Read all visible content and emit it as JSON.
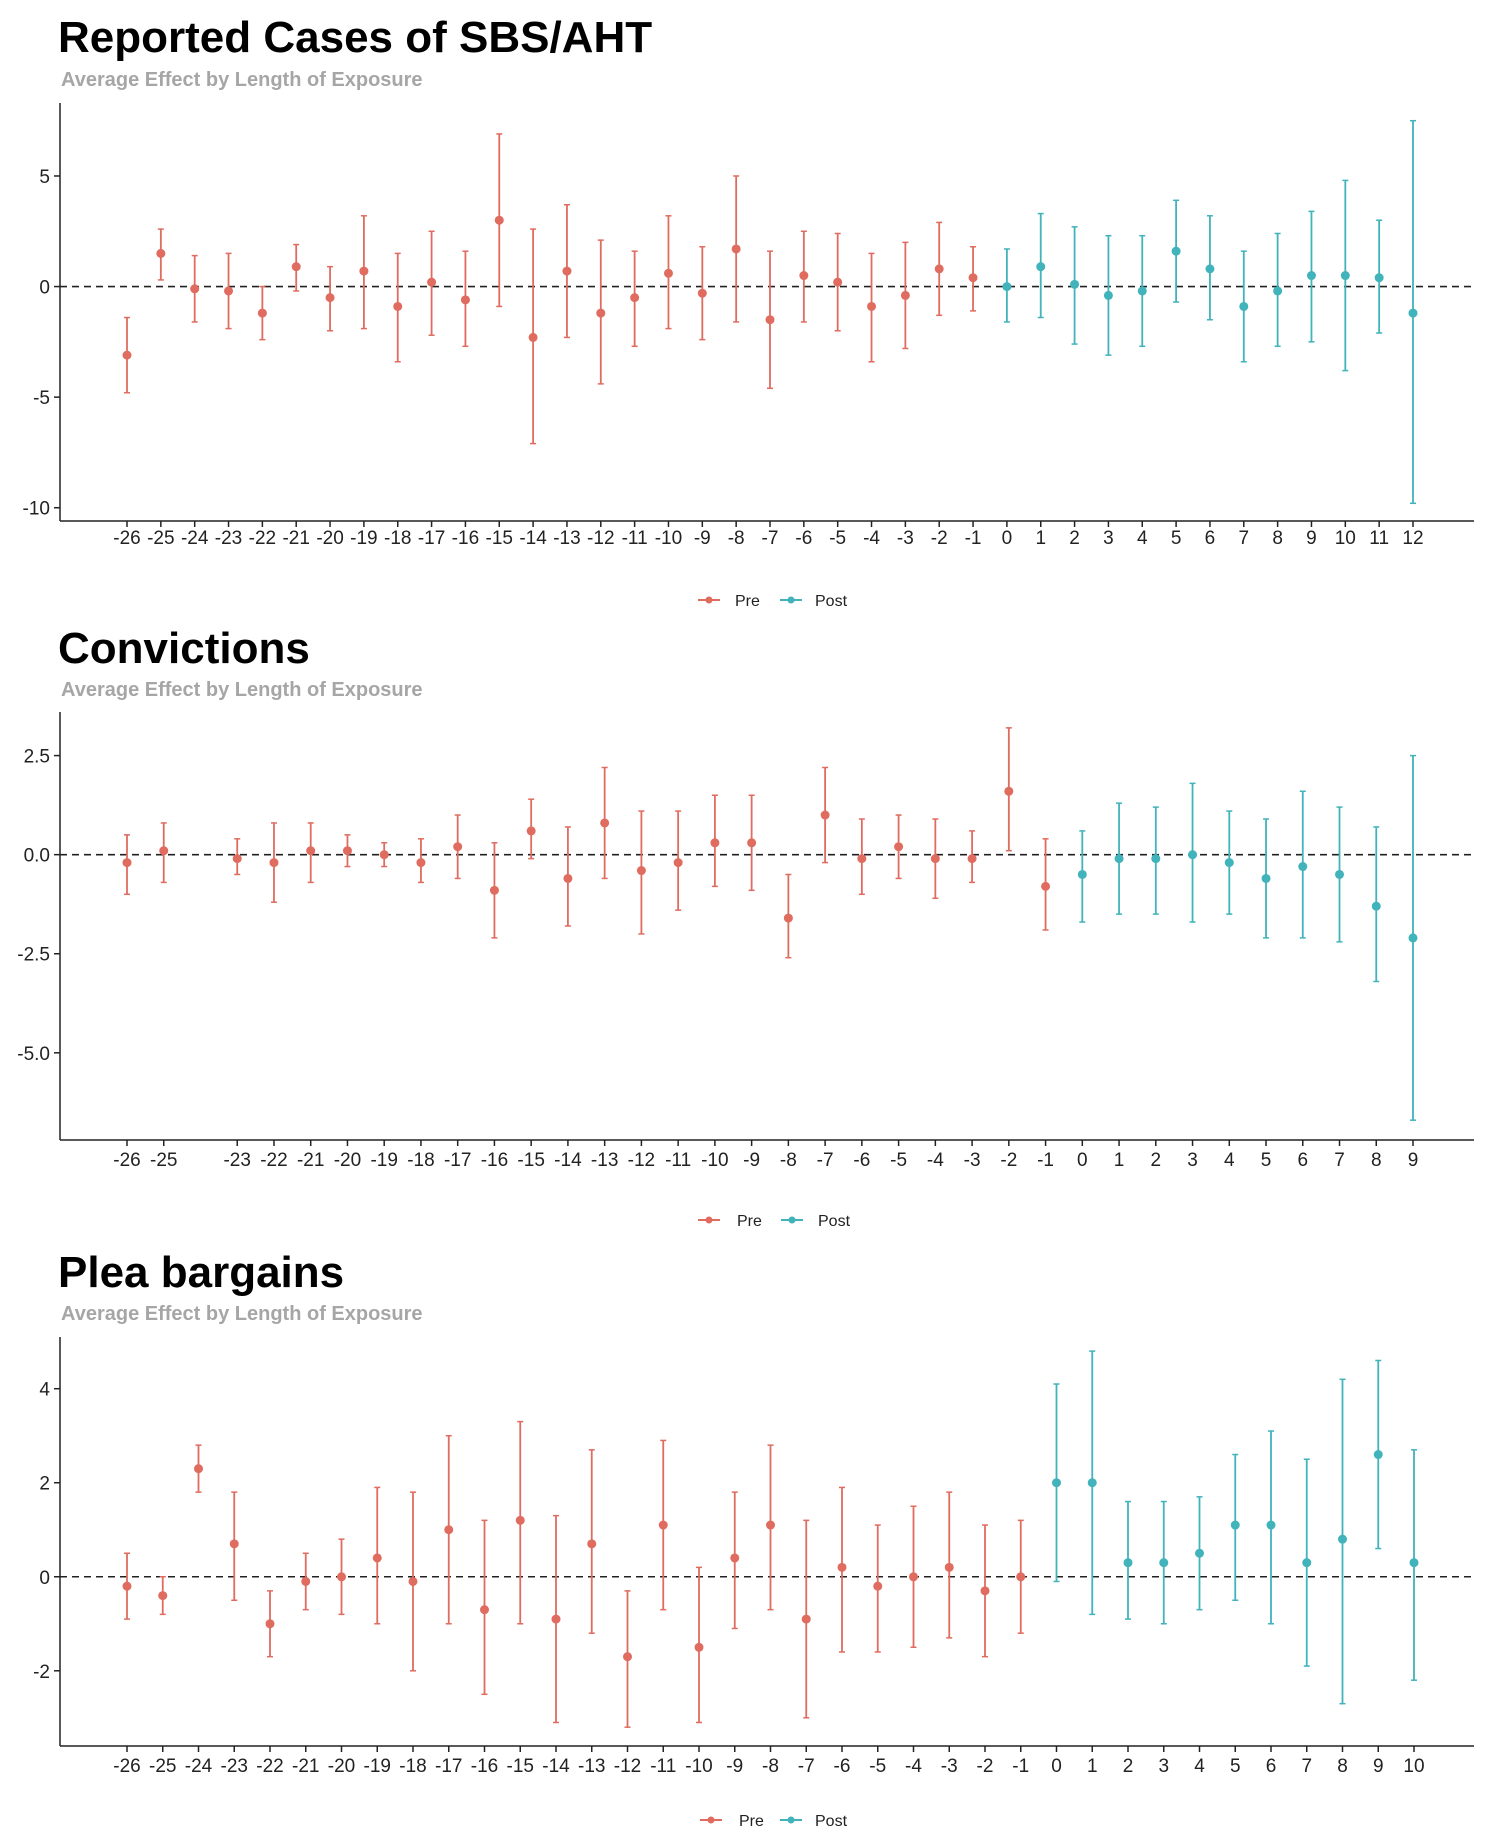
{
  "colors": {
    "pre": "#e06b5f",
    "post": "#40b3bb",
    "axis": "#222222",
    "zero_line": "#222222"
  },
  "chart_data": [
    {
      "type": "scatter",
      "title": "Reported Cases of SBS/AHT",
      "subtitle": "Average Effect by Length of Exposure",
      "xlabel": "",
      "ylabel": "",
      "ylim": [
        -10.6,
        8.3
      ],
      "y_ticks": [
        5,
        0,
        -5,
        -10
      ],
      "y_tick_labels": [
        "5",
        "0",
        "-5",
        "-10"
      ],
      "legend": {
        "position": "bottom",
        "entries": [
          "Pre",
          "Post"
        ]
      },
      "series": [
        {
          "name": "Pre",
          "points": [
            {
              "x": -26,
              "y": -3.1,
              "lo": -4.8,
              "hi": -1.4
            },
            {
              "x": -25,
              "y": 1.5,
              "lo": 0.3,
              "hi": 2.6
            },
            {
              "x": -24,
              "y": -0.1,
              "lo": -1.6,
              "hi": 1.4
            },
            {
              "x": -23,
              "y": -0.2,
              "lo": -1.9,
              "hi": 1.5
            },
            {
              "x": -22,
              "y": -1.2,
              "lo": -2.4,
              "hi": 0.0
            },
            {
              "x": -21,
              "y": 0.9,
              "lo": -0.2,
              "hi": 1.9
            },
            {
              "x": -20,
              "y": -0.5,
              "lo": -2.0,
              "hi": 0.9
            },
            {
              "x": -19,
              "y": 0.7,
              "lo": -1.9,
              "hi": 3.2
            },
            {
              "x": -18,
              "y": -0.9,
              "lo": -3.4,
              "hi": 1.5
            },
            {
              "x": -17,
              "y": 0.2,
              "lo": -2.2,
              "hi": 2.5
            },
            {
              "x": -16,
              "y": -0.6,
              "lo": -2.7,
              "hi": 1.6
            },
            {
              "x": -15,
              "y": 3.0,
              "lo": -0.9,
              "hi": 6.9
            },
            {
              "x": -14,
              "y": -2.3,
              "lo": -7.1,
              "hi": 2.6
            },
            {
              "x": -13,
              "y": 0.7,
              "lo": -2.3,
              "hi": 3.7
            },
            {
              "x": -12,
              "y": -1.2,
              "lo": -4.4,
              "hi": 2.1
            },
            {
              "x": -11,
              "y": -0.5,
              "lo": -2.7,
              "hi": 1.6
            },
            {
              "x": -10,
              "y": 0.6,
              "lo": -1.9,
              "hi": 3.2
            },
            {
              "x": -9,
              "y": -0.3,
              "lo": -2.4,
              "hi": 1.8
            },
            {
              "x": -8,
              "y": 1.7,
              "lo": -1.6,
              "hi": 5.0
            },
            {
              "x": -7,
              "y": -1.5,
              "lo": -4.6,
              "hi": 1.6
            },
            {
              "x": -6,
              "y": 0.5,
              "lo": -1.6,
              "hi": 2.5
            },
            {
              "x": -5,
              "y": 0.2,
              "lo": -2.0,
              "hi": 2.4
            },
            {
              "x": -4,
              "y": -0.9,
              "lo": -3.4,
              "hi": 1.5
            },
            {
              "x": -3,
              "y": -0.4,
              "lo": -2.8,
              "hi": 2.0
            },
            {
              "x": -2,
              "y": 0.8,
              "lo": -1.3,
              "hi": 2.9
            },
            {
              "x": -1,
              "y": 0.4,
              "lo": -1.1,
              "hi": 1.8
            }
          ]
        },
        {
          "name": "Post",
          "points": [
            {
              "x": 0,
              "y": 0.0,
              "lo": -1.6,
              "hi": 1.7
            },
            {
              "x": 1,
              "y": 0.9,
              "lo": -1.4,
              "hi": 3.3
            },
            {
              "x": 2,
              "y": 0.1,
              "lo": -2.6,
              "hi": 2.7
            },
            {
              "x": 3,
              "y": -0.4,
              "lo": -3.1,
              "hi": 2.3
            },
            {
              "x": 4,
              "y": -0.2,
              "lo": -2.7,
              "hi": 2.3
            },
            {
              "x": 5,
              "y": 1.6,
              "lo": -0.7,
              "hi": 3.9
            },
            {
              "x": 6,
              "y": 0.8,
              "lo": -1.5,
              "hi": 3.2
            },
            {
              "x": 7,
              "y": -0.9,
              "lo": -3.4,
              "hi": 1.6
            },
            {
              "x": 8,
              "y": -0.2,
              "lo": -2.7,
              "hi": 2.4
            },
            {
              "x": 9,
              "y": 0.5,
              "lo": -2.5,
              "hi": 3.4
            },
            {
              "x": 10,
              "y": 0.5,
              "lo": -3.8,
              "hi": 4.8
            },
            {
              "x": 11,
              "y": 0.4,
              "lo": -2.1,
              "hi": 3.0
            },
            {
              "x": 12,
              "y": -1.2,
              "lo": -9.8,
              "hi": 7.5
            }
          ]
        }
      ]
    },
    {
      "type": "scatter",
      "title": "Convictions",
      "subtitle": "Average Effect by Length of Exposure",
      "xlabel": "",
      "ylabel": "",
      "ylim": [
        -7.2,
        3.6
      ],
      "y_ticks": [
        2.5,
        0.0,
        -2.5,
        -5.0
      ],
      "y_tick_labels": [
        "2.5",
        "0.0",
        "-2.5",
        "-5.0"
      ],
      "legend": {
        "position": "bottom",
        "entries": [
          "Pre",
          "Post"
        ]
      },
      "series": [
        {
          "name": "Pre",
          "points": [
            {
              "x": -26,
              "y": -0.2,
              "lo": -1.0,
              "hi": 0.5
            },
            {
              "x": -25,
              "y": 0.1,
              "lo": -0.7,
              "hi": 0.8
            },
            {
              "x": -23,
              "y": -0.1,
              "lo": -0.5,
              "hi": 0.4
            },
            {
              "x": -22,
              "y": -0.2,
              "lo": -1.2,
              "hi": 0.8
            },
            {
              "x": -21,
              "y": 0.1,
              "lo": -0.7,
              "hi": 0.8
            },
            {
              "x": -20,
              "y": 0.1,
              "lo": -0.3,
              "hi": 0.5
            },
            {
              "x": -19,
              "y": 0.0,
              "lo": -0.3,
              "hi": 0.3
            },
            {
              "x": -18,
              "y": -0.2,
              "lo": -0.7,
              "hi": 0.4
            },
            {
              "x": -17,
              "y": 0.2,
              "lo": -0.6,
              "hi": 1.0
            },
            {
              "x": -16,
              "y": -0.9,
              "lo": -2.1,
              "hi": 0.3
            },
            {
              "x": -15,
              "y": 0.6,
              "lo": -0.1,
              "hi": 1.4
            },
            {
              "x": -14,
              "y": -0.6,
              "lo": -1.8,
              "hi": 0.7
            },
            {
              "x": -13,
              "y": 0.8,
              "lo": -0.6,
              "hi": 2.2
            },
            {
              "x": -12,
              "y": -0.4,
              "lo": -2.0,
              "hi": 1.1
            },
            {
              "x": -11,
              "y": -0.2,
              "lo": -1.4,
              "hi": 1.1
            },
            {
              "x": -10,
              "y": 0.3,
              "lo": -0.8,
              "hi": 1.5
            },
            {
              "x": -9,
              "y": 0.3,
              "lo": -0.9,
              "hi": 1.5
            },
            {
              "x": -8,
              "y": -1.6,
              "lo": -2.6,
              "hi": -0.5
            },
            {
              "x": -7,
              "y": 1.0,
              "lo": -0.2,
              "hi": 2.2
            },
            {
              "x": -6,
              "y": -0.1,
              "lo": -1.0,
              "hi": 0.9
            },
            {
              "x": -5,
              "y": 0.2,
              "lo": -0.6,
              "hi": 1.0
            },
            {
              "x": -4,
              "y": -0.1,
              "lo": -1.1,
              "hi": 0.9
            },
            {
              "x": -3,
              "y": -0.1,
              "lo": -0.7,
              "hi": 0.6
            },
            {
              "x": -2,
              "y": 1.6,
              "lo": 0.1,
              "hi": 3.2
            },
            {
              "x": -1,
              "y": -0.8,
              "lo": -1.9,
              "hi": 0.4
            }
          ]
        },
        {
          "name": "Post",
          "points": [
            {
              "x": 0,
              "y": -0.5,
              "lo": -1.7,
              "hi": 0.6
            },
            {
              "x": 1,
              "y": -0.1,
              "lo": -1.5,
              "hi": 1.3
            },
            {
              "x": 2,
              "y": -0.1,
              "lo": -1.5,
              "hi": 1.2
            },
            {
              "x": 3,
              "y": 0.0,
              "lo": -1.7,
              "hi": 1.8
            },
            {
              "x": 4,
              "y": -0.2,
              "lo": -1.5,
              "hi": 1.1
            },
            {
              "x": 5,
              "y": -0.6,
              "lo": -2.1,
              "hi": 0.9
            },
            {
              "x": 6,
              "y": -0.3,
              "lo": -2.1,
              "hi": 1.6
            },
            {
              "x": 7,
              "y": -0.5,
              "lo": -2.2,
              "hi": 1.2
            },
            {
              "x": 8,
              "y": -1.3,
              "lo": -3.2,
              "hi": 0.7
            },
            {
              "x": 9,
              "y": -2.1,
              "lo": -6.7,
              "hi": 2.5
            }
          ]
        }
      ]
    },
    {
      "type": "scatter",
      "title": "Plea bargains",
      "subtitle": "Average Effect by Length of Exposure",
      "xlabel": "",
      "ylabel": "",
      "ylim": [
        -3.6,
        5.1
      ],
      "y_ticks": [
        4,
        2,
        0,
        -2
      ],
      "y_tick_labels": [
        "4",
        "2",
        "0",
        "-2"
      ],
      "legend": {
        "position": "bottom",
        "entries": [
          "Pre",
          "Post"
        ]
      },
      "series": [
        {
          "name": "Pre",
          "points": [
            {
              "x": -26,
              "y": -0.2,
              "lo": -0.9,
              "hi": 0.5
            },
            {
              "x": -25,
              "y": -0.4,
              "lo": -0.8,
              "hi": 0.0
            },
            {
              "x": -24,
              "y": 2.3,
              "lo": 1.8,
              "hi": 2.8
            },
            {
              "x": -23,
              "y": 0.7,
              "lo": -0.5,
              "hi": 1.8
            },
            {
              "x": -22,
              "y": -1.0,
              "lo": -1.7,
              "hi": -0.3
            },
            {
              "x": -21,
              "y": -0.1,
              "lo": -0.7,
              "hi": 0.5
            },
            {
              "x": -20,
              "y": 0.0,
              "lo": -0.8,
              "hi": 0.8
            },
            {
              "x": -19,
              "y": 0.4,
              "lo": -1.0,
              "hi": 1.9
            },
            {
              "x": -18,
              "y": -0.1,
              "lo": -2.0,
              "hi": 1.8
            },
            {
              "x": -17,
              "y": 1.0,
              "lo": -1.0,
              "hi": 3.0
            },
            {
              "x": -16,
              "y": -0.7,
              "lo": -2.5,
              "hi": 1.2
            },
            {
              "x": -15,
              "y": 1.2,
              "lo": -1.0,
              "hi": 3.3
            },
            {
              "x": -14,
              "y": -0.9,
              "lo": -3.1,
              "hi": 1.3
            },
            {
              "x": -13,
              "y": 0.7,
              "lo": -1.2,
              "hi": 2.7
            },
            {
              "x": -12,
              "y": -1.7,
              "lo": -3.2,
              "hi": -0.3
            },
            {
              "x": -11,
              "y": 1.1,
              "lo": -0.7,
              "hi": 2.9
            },
            {
              "x": -10,
              "y": -1.5,
              "lo": -3.1,
              "hi": 0.2
            },
            {
              "x": -9,
              "y": 0.4,
              "lo": -1.1,
              "hi": 1.8
            },
            {
              "x": -8,
              "y": 1.1,
              "lo": -0.7,
              "hi": 2.8
            },
            {
              "x": -7,
              "y": -0.9,
              "lo": -3.0,
              "hi": 1.2
            },
            {
              "x": -6,
              "y": 0.2,
              "lo": -1.6,
              "hi": 1.9
            },
            {
              "x": -5,
              "y": -0.2,
              "lo": -1.6,
              "hi": 1.1
            },
            {
              "x": -4,
              "y": 0.0,
              "lo": -1.5,
              "hi": 1.5
            },
            {
              "x": -3,
              "y": 0.2,
              "lo": -1.3,
              "hi": 1.8
            },
            {
              "x": -2,
              "y": -0.3,
              "lo": -1.7,
              "hi": 1.1
            },
            {
              "x": -1,
              "y": 0.0,
              "lo": -1.2,
              "hi": 1.2
            }
          ]
        },
        {
          "name": "Post",
          "points": [
            {
              "x": 0,
              "y": 2.0,
              "lo": -0.1,
              "hi": 4.1
            },
            {
              "x": 1,
              "y": 2.0,
              "lo": -0.8,
              "hi": 4.8
            },
            {
              "x": 2,
              "y": 0.3,
              "lo": -0.9,
              "hi": 1.6
            },
            {
              "x": 3,
              "y": 0.3,
              "lo": -1.0,
              "hi": 1.6
            },
            {
              "x": 4,
              "y": 0.5,
              "lo": -0.7,
              "hi": 1.7
            },
            {
              "x": 5,
              "y": 1.1,
              "lo": -0.5,
              "hi": 2.6
            },
            {
              "x": 6,
              "y": 1.1,
              "lo": -1.0,
              "hi": 3.1
            },
            {
              "x": 7,
              "y": 0.3,
              "lo": -1.9,
              "hi": 2.5
            },
            {
              "x": 8,
              "y": 0.8,
              "lo": -2.7,
              "hi": 4.2
            },
            {
              "x": 9,
              "y": 2.6,
              "lo": 0.6,
              "hi": 4.6
            },
            {
              "x": 10,
              "y": 0.3,
              "lo": -2.2,
              "hi": 2.7
            }
          ]
        }
      ]
    }
  ]
}
